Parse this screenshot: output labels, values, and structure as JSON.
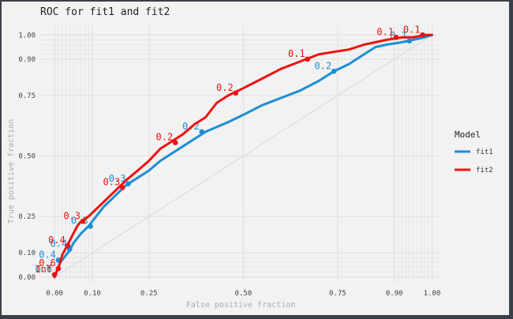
{
  "chart_data": {
    "type": "line",
    "title": "ROC for fit1 and fit2",
    "xlabel": "False positive fraction",
    "ylabel": "True positive fraction",
    "xlim": [
      -0.04,
      1.02
    ],
    "ylim": [
      -0.02,
      1.04
    ],
    "grid": true,
    "x_ticks": [
      0.0,
      0.1,
      0.25,
      0.5,
      0.75,
      0.9,
      1.0
    ],
    "x_tick_labels": [
      "0.00",
      "0.10",
      "0.25",
      "0.50",
      "0.75",
      "0.90",
      "1.00"
    ],
    "y_ticks": [
      0.0,
      0.1,
      0.25,
      0.5,
      0.75,
      0.9,
      1.0
    ],
    "y_tick_labels": [
      "0.00",
      "0.10",
      "0.25",
      "0.50",
      "0.75",
      "0.90",
      "1.00"
    ],
    "reference_line": [
      [
        0,
        0
      ],
      [
        1,
        1
      ]
    ],
    "legend": {
      "title": "Model",
      "position": "right",
      "entries": [
        {
          "label": "fit1",
          "color": "#1b8fd6"
        },
        {
          "label": "fit2",
          "color": "#ee1111"
        }
      ]
    },
    "series": [
      {
        "name": "fit1",
        "color": "#1b8fd6",
        "points": [
          [
            0.0,
            0.0
          ],
          [
            0.005,
            0.02
          ],
          [
            0.01,
            0.04
          ],
          [
            0.015,
            0.06
          ],
          [
            0.02,
            0.07
          ],
          [
            0.03,
            0.09
          ],
          [
            0.04,
            0.11
          ],
          [
            0.05,
            0.14
          ],
          [
            0.06,
            0.16
          ],
          [
            0.07,
            0.18
          ],
          [
            0.09,
            0.21
          ],
          [
            0.11,
            0.25
          ],
          [
            0.13,
            0.29
          ],
          [
            0.15,
            0.32
          ],
          [
            0.17,
            0.35
          ],
          [
            0.19,
            0.38
          ],
          [
            0.22,
            0.41
          ],
          [
            0.25,
            0.44
          ],
          [
            0.28,
            0.48
          ],
          [
            0.31,
            0.51
          ],
          [
            0.34,
            0.54
          ],
          [
            0.37,
            0.57
          ],
          [
            0.4,
            0.6
          ],
          [
            0.43,
            0.62
          ],
          [
            0.46,
            0.64
          ],
          [
            0.5,
            0.67
          ],
          [
            0.55,
            0.71
          ],
          [
            0.6,
            0.74
          ],
          [
            0.65,
            0.77
          ],
          [
            0.7,
            0.81
          ],
          [
            0.74,
            0.85
          ],
          [
            0.78,
            0.88
          ],
          [
            0.82,
            0.92
          ],
          [
            0.85,
            0.95
          ],
          [
            0.88,
            0.96
          ],
          [
            0.92,
            0.97
          ],
          [
            0.95,
            0.98
          ],
          [
            0.98,
            0.99
          ],
          [
            1.0,
            1.0
          ]
        ],
        "markers": [
          {
            "x": 0.0,
            "y": 0.01,
            "label": "0.6"
          },
          {
            "x": 0.01,
            "y": 0.07,
            "label": "0.4"
          },
          {
            "x": 0.04,
            "y": 0.115,
            "label": "0.4"
          },
          {
            "x": 0.095,
            "y": 0.21,
            "label": "0.3"
          },
          {
            "x": 0.195,
            "y": 0.385,
            "label": "0.3"
          },
          {
            "x": 0.39,
            "y": 0.6,
            "label": "0.2"
          },
          {
            "x": 0.74,
            "y": 0.85,
            "label": "0.2"
          },
          {
            "x": 0.94,
            "y": 0.975,
            "label": "0.1"
          }
        ]
      },
      {
        "name": "fit2",
        "color": "#ee1111",
        "points": [
          [
            0.0,
            0.0
          ],
          [
            0.005,
            0.02
          ],
          [
            0.01,
            0.04
          ],
          [
            0.015,
            0.06
          ],
          [
            0.02,
            0.09
          ],
          [
            0.03,
            0.12
          ],
          [
            0.04,
            0.15
          ],
          [
            0.05,
            0.18
          ],
          [
            0.06,
            0.21
          ],
          [
            0.07,
            0.23
          ],
          [
            0.09,
            0.25
          ],
          [
            0.11,
            0.28
          ],
          [
            0.13,
            0.31
          ],
          [
            0.15,
            0.34
          ],
          [
            0.17,
            0.37
          ],
          [
            0.19,
            0.4
          ],
          [
            0.22,
            0.44
          ],
          [
            0.25,
            0.48
          ],
          [
            0.28,
            0.53
          ],
          [
            0.31,
            0.56
          ],
          [
            0.34,
            0.59
          ],
          [
            0.37,
            0.63
          ],
          [
            0.4,
            0.66
          ],
          [
            0.43,
            0.72
          ],
          [
            0.46,
            0.75
          ],
          [
            0.5,
            0.78
          ],
          [
            0.55,
            0.82
          ],
          [
            0.6,
            0.86
          ],
          [
            0.65,
            0.89
          ],
          [
            0.7,
            0.92
          ],
          [
            0.74,
            0.93
          ],
          [
            0.78,
            0.94
          ],
          [
            0.82,
            0.96
          ],
          [
            0.85,
            0.97
          ],
          [
            0.88,
            0.98
          ],
          [
            0.92,
            0.99
          ],
          [
            0.95,
            0.99
          ],
          [
            0.98,
            1.0
          ],
          [
            1.0,
            1.0
          ]
        ],
        "markers": [
          {
            "x": 0.0,
            "y": 0.01,
            "label": "Inf"
          },
          {
            "x": 0.01,
            "y": 0.035,
            "label": "0.6"
          },
          {
            "x": 0.035,
            "y": 0.13,
            "label": "0.4"
          },
          {
            "x": 0.075,
            "y": 0.23,
            "label": "0.3"
          },
          {
            "x": 0.18,
            "y": 0.37,
            "label": "0.3"
          },
          {
            "x": 0.32,
            "y": 0.555,
            "label": "0.2"
          },
          {
            "x": 0.48,
            "y": 0.76,
            "label": "0.2"
          },
          {
            "x": 0.67,
            "y": 0.9,
            "label": "0.1"
          },
          {
            "x": 0.905,
            "y": 0.99,
            "label": "0.1"
          },
          {
            "x": 0.975,
            "y": 1.0,
            "label": "0.1"
          }
        ]
      }
    ]
  }
}
